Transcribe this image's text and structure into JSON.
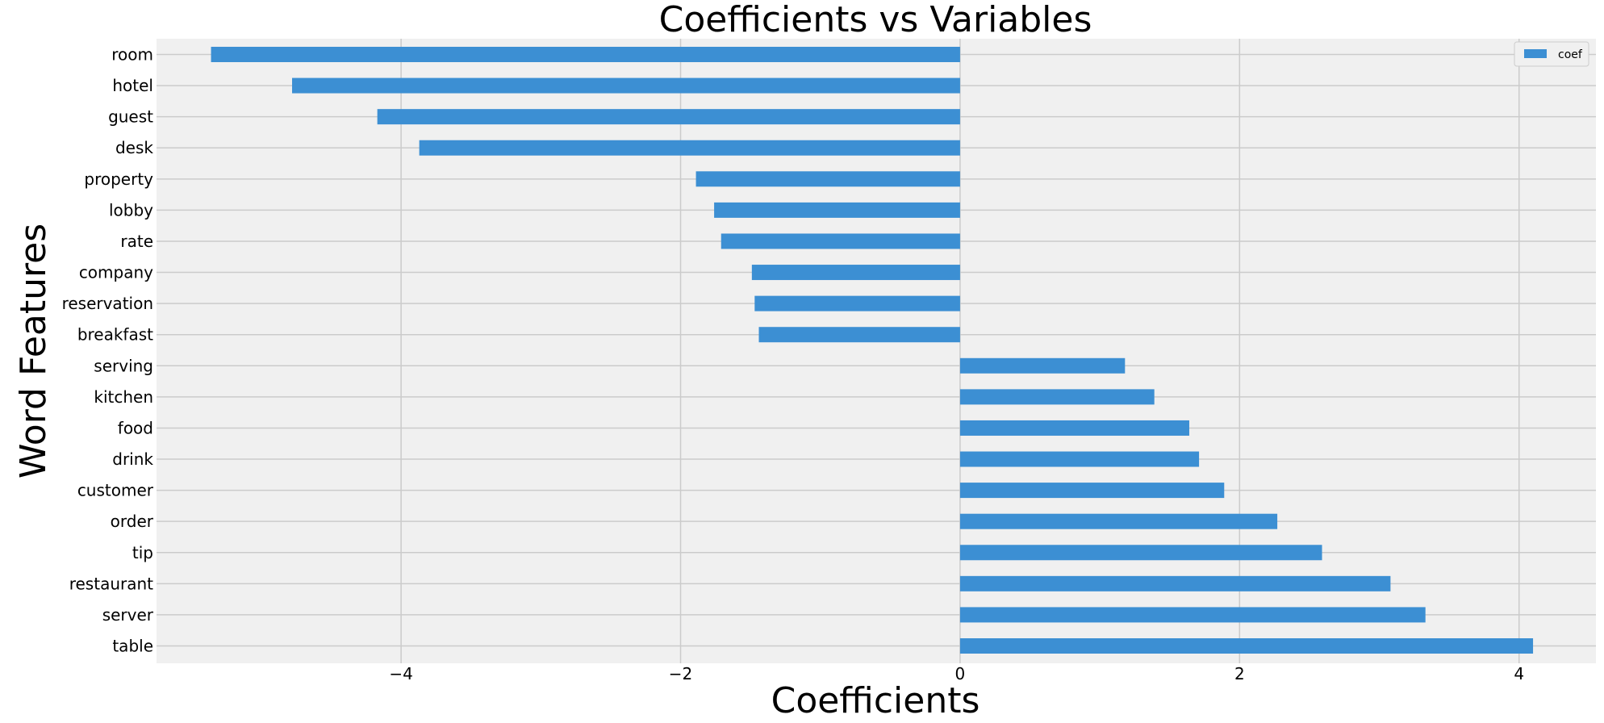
{
  "chart_data": {
    "type": "bar",
    "orientation": "horizontal",
    "title": "Coefficients vs Variables",
    "xlabel": "Coefficients",
    "ylabel": "Word Features",
    "xlim": [
      -5.75,
      4.55
    ],
    "xticks": [
      -4,
      -2,
      0,
      2,
      4
    ],
    "xtick_labels": [
      "−4",
      "−2",
      "0",
      "2",
      "4"
    ],
    "grid": true,
    "legend_position": "top-right",
    "categories": [
      "room",
      "hotel",
      "guest",
      "desk",
      "property",
      "lobby",
      "rate",
      "company",
      "reservation",
      "breakfast",
      "serving",
      "kitchen",
      "food",
      "drink",
      "customer",
      "order",
      "tip",
      "restaurant",
      "server",
      "table"
    ],
    "series": [
      {
        "name": "coef",
        "color": "#3c8fd3",
        "values": [
          -5.36,
          -4.78,
          -4.17,
          -3.87,
          -1.89,
          -1.76,
          -1.71,
          -1.49,
          -1.47,
          -1.44,
          1.18,
          1.39,
          1.64,
          1.71,
          1.89,
          2.27,
          2.59,
          3.08,
          3.33,
          4.1
        ]
      }
    ]
  }
}
